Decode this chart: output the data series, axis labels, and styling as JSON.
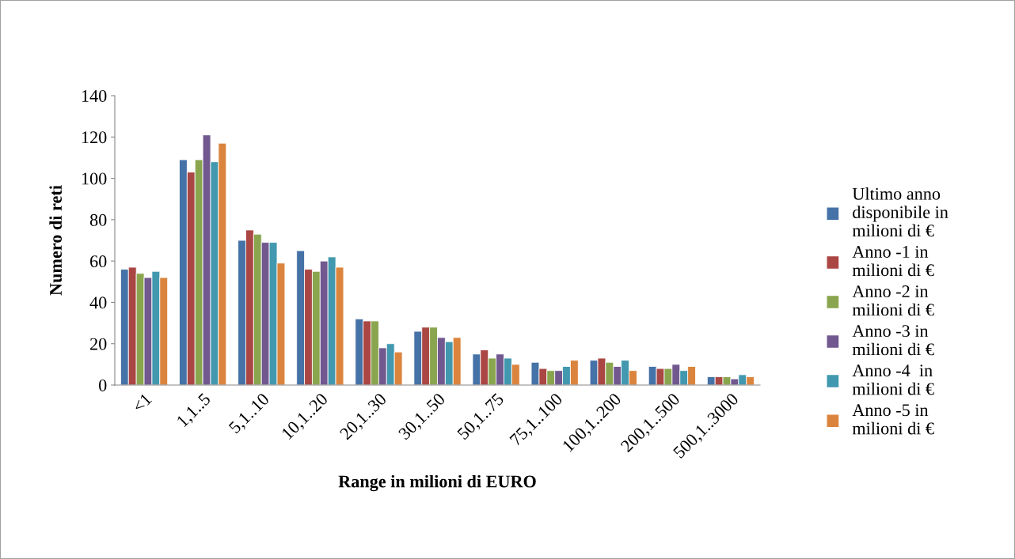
{
  "chart_data": {
    "type": "bar",
    "xlabel": "Range in milioni di EURO",
    "ylabel": "Numero di reti",
    "categories": [
      "<1",
      "1,1..5",
      "5,1..10",
      "10,1..20",
      "20,1..30",
      "30,1..50",
      "50,1..75",
      "75,1..100",
      "100,1..200",
      "200,1..500",
      "500,1..3000"
    ],
    "series": [
      {
        "name": "Ultimo anno disponibile in milioni di €",
        "color": "#4572a7",
        "values": [
          56,
          109,
          70,
          65,
          32,
          26,
          15,
          11,
          12,
          9,
          4
        ]
      },
      {
        "name": "Anno -1 in milioni di €",
        "color": "#aa4643",
        "values": [
          57,
          103,
          75,
          56,
          31,
          28,
          17,
          8,
          13,
          8,
          4
        ]
      },
      {
        "name": "Anno -2 in milioni di €",
        "color": "#89a54e",
        "values": [
          54,
          109,
          73,
          55,
          31,
          28,
          13,
          7,
          11,
          8,
          4
        ]
      },
      {
        "name": "Anno -3 in milioni di €",
        "color": "#71588f",
        "values": [
          52,
          121,
          69,
          60,
          18,
          23,
          15,
          7,
          9,
          10,
          3
        ]
      },
      {
        "name": "Anno -4  in milioni di €",
        "color": "#4198af",
        "values": [
          55,
          108,
          69,
          62,
          20,
          21,
          13,
          9,
          12,
          7,
          5
        ]
      },
      {
        "name": "Anno -5 in milioni di €",
        "color": "#db843d",
        "values": [
          52,
          117,
          59,
          57,
          16,
          23,
          10,
          12,
          7,
          9,
          4
        ]
      }
    ],
    "ylim": [
      0,
      140
    ],
    "yticks": [
      0,
      20,
      40,
      60,
      80,
      100,
      120,
      140
    ],
    "grid": false,
    "legend": "right"
  }
}
